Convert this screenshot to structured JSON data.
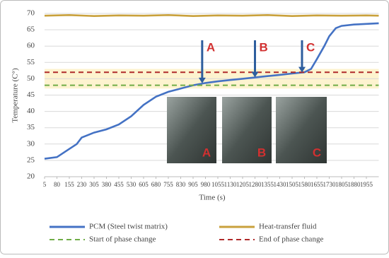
{
  "chart_data": {
    "type": "line",
    "xlabel": "Time (s)",
    "ylabel": "Temperature (C°)",
    "xlim": [
      5,
      2030
    ],
    "ylim": [
      20,
      70
    ],
    "xticks": [
      5,
      80,
      155,
      230,
      305,
      380,
      455,
      530,
      605,
      680,
      755,
      830,
      905,
      980,
      1055,
      1130,
      1205,
      1280,
      1355,
      1430,
      1505,
      1580,
      1655,
      1730,
      1805,
      1880,
      1955
    ],
    "yticks": [
      20,
      25,
      30,
      35,
      40,
      45,
      50,
      55,
      60,
      65,
      70
    ],
    "grid": true,
    "legend": "bottom",
    "band": {
      "range": [
        47,
        53
      ],
      "color": "#fdf3cf"
    },
    "series": [
      {
        "name": "PCM (Steel twist matrix)",
        "color": "#4472c4",
        "dash": false,
        "x": [
          5,
          80,
          155,
          200,
          230,
          305,
          380,
          455,
          530,
          605,
          680,
          755,
          830,
          905,
          980,
          1055,
          1130,
          1205,
          1280,
          1355,
          1430,
          1505,
          1580,
          1620,
          1655,
          1700,
          1730,
          1770,
          1805,
          1880,
          1955,
          2030
        ],
        "values": [
          25.5,
          26,
          28.5,
          30,
          32,
          33.5,
          34.5,
          36,
          38.5,
          42,
          44.5,
          46,
          47,
          48,
          48.7,
          49.2,
          49.6,
          50,
          50.4,
          50.8,
          51.2,
          51.6,
          52,
          53,
          56,
          60,
          63,
          65.5,
          66.2,
          66.6,
          66.8,
          67
        ]
      },
      {
        "name": "Heat-transfer fluid",
        "color": "#c9a13c",
        "dash": false,
        "x": [
          5,
          155,
          305,
          455,
          605,
          755,
          905,
          1055,
          1205,
          1355,
          1505,
          1655,
          1805,
          1955,
          2030
        ],
        "values": [
          69.3,
          69.5,
          69.2,
          69.4,
          69.3,
          69.5,
          69.2,
          69.4,
          69.3,
          69.5,
          69.2,
          69.4,
          69.3,
          69.4,
          69.3
        ]
      },
      {
        "name": "Start of phase change",
        "color": "#70ad47",
        "dash": true,
        "x": [
          5,
          2030
        ],
        "values": [
          48,
          48
        ]
      },
      {
        "name": "End of phase change",
        "color": "#b02a2a",
        "dash": true,
        "x": [
          5,
          2030
        ],
        "values": [
          52,
          52
        ]
      }
    ],
    "annotations": [
      {
        "text": "A",
        "x": 960,
        "y": 48.6
      },
      {
        "text": "B",
        "x": 1280,
        "y": 50.4
      },
      {
        "text": "C",
        "x": 1565,
        "y": 51.9
      }
    ],
    "photo_labels": [
      "A",
      "B",
      "C"
    ]
  }
}
